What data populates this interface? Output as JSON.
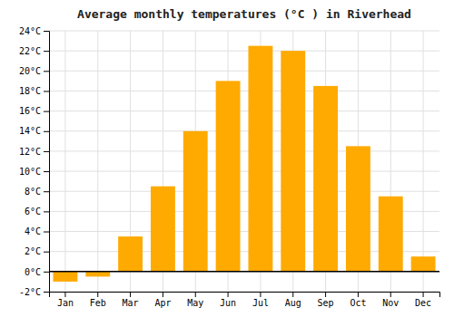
{
  "chart_data": {
    "type": "bar",
    "title": "Average monthly temperatures (°C ) in Riverhead",
    "categories": [
      "Jan",
      "Feb",
      "Mar",
      "Apr",
      "May",
      "Jun",
      "Jul",
      "Aug",
      "Sep",
      "Oct",
      "Nov",
      "Dec"
    ],
    "values": [
      -1.0,
      -0.5,
      3.5,
      8.5,
      14.0,
      19.0,
      22.5,
      22.0,
      18.5,
      12.5,
      7.5,
      1.5
    ],
    "color": "#FFAA00",
    "ylim": [
      -2,
      24
    ],
    "yticks": [
      {
        "value": -2,
        "label": "-2°C"
      },
      {
        "value": 0,
        "label": "0°C"
      },
      {
        "value": 2,
        "label": "2°C"
      },
      {
        "value": 4,
        "label": "4°C"
      },
      {
        "value": 6,
        "label": "6°C"
      },
      {
        "value": 8,
        "label": "8°C"
      },
      {
        "value": 10,
        "label": "10°C"
      },
      {
        "value": 12,
        "label": "12°C"
      },
      {
        "value": 14,
        "label": "14°C"
      },
      {
        "value": 16,
        "label": "16°C"
      },
      {
        "value": 18,
        "label": "18°C"
      },
      {
        "value": 20,
        "label": "20°C"
      },
      {
        "value": 22,
        "label": "22°C"
      },
      {
        "value": 24,
        "label": "24°C"
      }
    ],
    "grid": true
  }
}
